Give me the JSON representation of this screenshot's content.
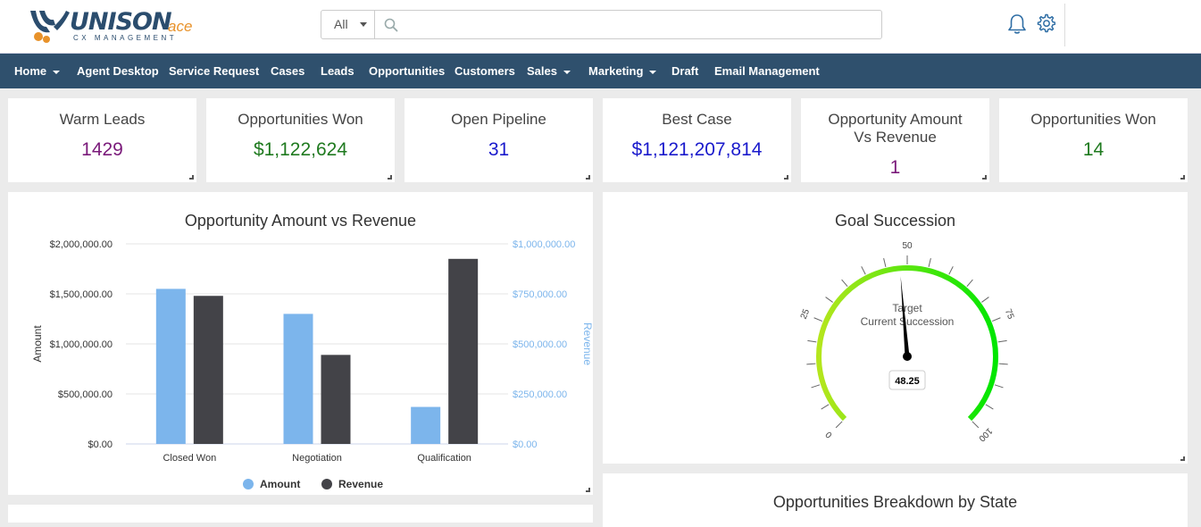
{
  "header": {
    "logo_main": "UNISON",
    "logo_ace": "ace",
    "logo_sub": "CX MANAGEMENT",
    "search_scope": "All",
    "search_placeholder": ""
  },
  "nav": {
    "items": [
      {
        "label": "Home",
        "dropdown": true
      },
      {
        "label": "Agent Desktop",
        "dropdown": false
      },
      {
        "label": "Service Request",
        "dropdown": false
      },
      {
        "label": "Cases",
        "dropdown": false
      },
      {
        "label": "Leads",
        "dropdown": false
      },
      {
        "label": "Opportunities",
        "dropdown": false
      },
      {
        "label": "Customers",
        "dropdown": false
      },
      {
        "label": "Sales",
        "dropdown": true
      },
      {
        "label": "Marketing",
        "dropdown": true
      },
      {
        "label": "Draft",
        "dropdown": false
      },
      {
        "label": "Email Management",
        "dropdown": false
      }
    ]
  },
  "kpis": [
    {
      "title": "Warm Leads",
      "value": "1429",
      "color": "#7a1a7a"
    },
    {
      "title": "Opportunities Won",
      "value": "$1,122,624",
      "color": "#1f7a1f"
    },
    {
      "title": "Open Pipeline",
      "value": "31",
      "color": "#1a1acc"
    },
    {
      "title": "Best Case",
      "value": "$1,121,207,814",
      "color": "#1a1acc"
    },
    {
      "title": "Opportunity Amount Vs Revenue",
      "value": "1",
      "color": "#7a1a7a"
    },
    {
      "title": "Opportunities Won",
      "value": "14",
      "color": "#1f7a1f"
    }
  ],
  "chart_data": [
    {
      "type": "bar",
      "title": "Opportunity Amount vs Revenue",
      "categories": [
        "Closed Won",
        "Negotiation",
        "Qualification"
      ],
      "series": [
        {
          "name": "Amount",
          "axis": "left",
          "color": "#7cb5ec",
          "values": [
            1550000,
            1300000,
            370000
          ]
        },
        {
          "name": "Revenue",
          "axis": "right",
          "color": "#434348",
          "values": [
            740000,
            445000,
            925000
          ]
        }
      ],
      "ylabel": "Amount",
      "ylabel_right": "Revenue",
      "ylim": [
        0,
        2000000
      ],
      "ylim_right": [
        0,
        1000000
      ],
      "yticks": [
        "$0.00",
        "$500,000.00",
        "$1,000,000.00",
        "$1,500,000.00",
        "$2,000,000.00"
      ],
      "yticks_right": [
        "$0.00",
        "$250,000.00",
        "$500,000.00",
        "$750,000.00",
        "$1,000,000.00"
      ],
      "legend": "bottom-center",
      "grid": true
    },
    {
      "type": "gauge",
      "title": "Goal Succession",
      "value": 48.25,
      "value_label": "48.25",
      "range": [
        0,
        100
      ],
      "major_ticks": [
        "0",
        "25",
        "50",
        "75",
        "100"
      ],
      "pane_text": [
        "Target",
        "Current Succession"
      ],
      "band_colors": [
        "#b5e61d",
        "#00e600"
      ]
    }
  ],
  "bottom_panel": {
    "title": "Opportunities Breakdown by State"
  }
}
